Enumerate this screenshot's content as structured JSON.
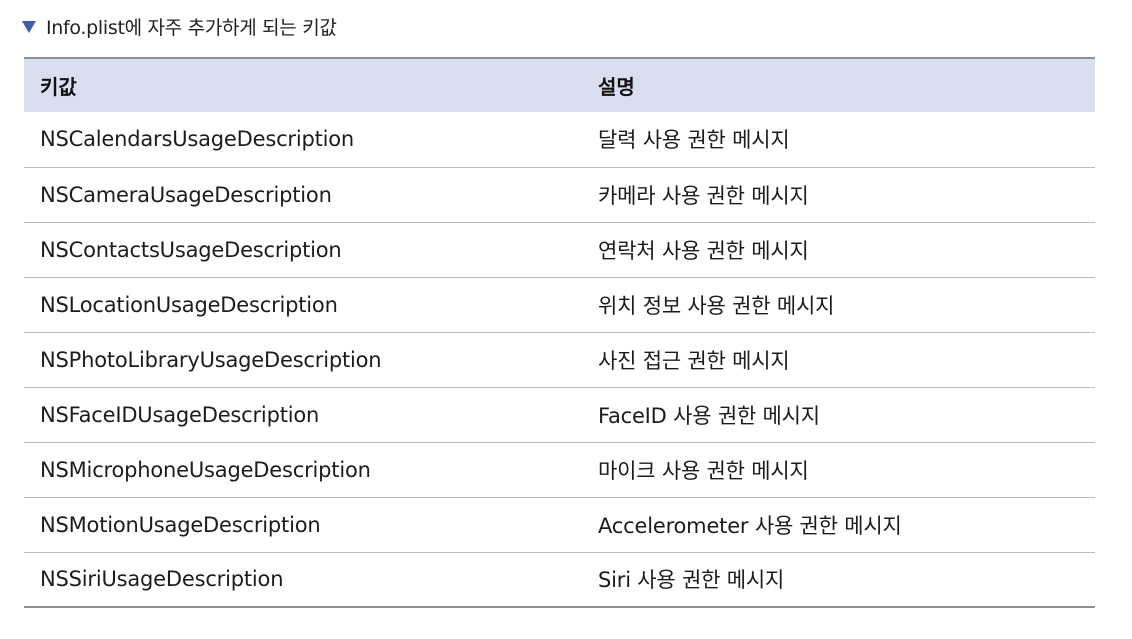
{
  "caption": {
    "marker_icon": "triangle-down-icon",
    "text": "Info.plist에 자주 추가하게 되는 키값"
  },
  "table": {
    "headers": [
      "키값",
      "설명"
    ],
    "rows": [
      [
        "NSCalendarsUsageDescription",
        "달력 사용 권한 메시지"
      ],
      [
        "NSCameraUsageDescription",
        "카메라 사용 권한 메시지"
      ],
      [
        "NSContactsUsageDescription",
        "연락처 사용 권한 메시지"
      ],
      [
        "NSLocationUsageDescription",
        "위치 정보 사용 권한 메시지"
      ],
      [
        "NSPhotoLibraryUsageDescription",
        "사진 접근 권한 메시지"
      ],
      [
        "NSFaceIDUsageDescription",
        "FaceID 사용 권한 메시지"
      ],
      [
        "NSMicrophoneUsageDescription",
        "마이크 사용 권한 메시지"
      ],
      [
        "NSMotionUsageDescription",
        "Accelerometer 사용 권한 메시지"
      ],
      [
        "NSSiriUsageDescription",
        "Siri 사용 권한 메시지"
      ]
    ]
  },
  "colors": {
    "header_background": "#d9dff0",
    "marker": "#3d5fa8",
    "rule": "#8f8f8f"
  }
}
